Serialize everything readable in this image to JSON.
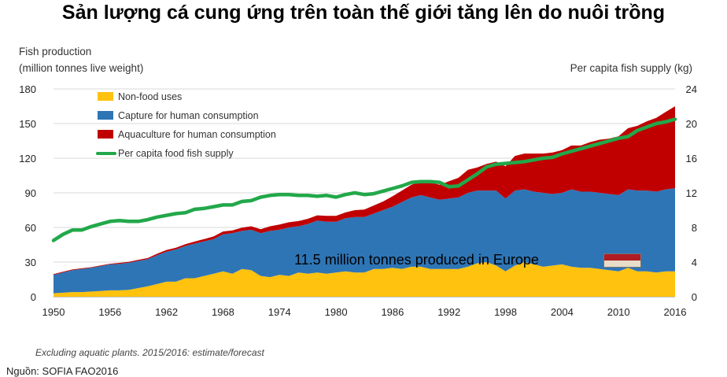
{
  "slide_title": "Sản lượng cá cung ứng trên toàn thế giới tăng lên do nuôi trồng",
  "note": "Excluding aquatic plants. 2015/2016: estimate/forecast",
  "source": "Nguồn: SOFIA FAO2016",
  "annotation": {
    "text": "11.5 million tonnes produced in Europe",
    "flag_colors": [
      "#b01c23",
      "#e7ddc8"
    ]
  },
  "chart_data": {
    "type": "area",
    "ylabel_left_line1": "Fish production",
    "ylabel_left_line2": "(million tonnes live weight)",
    "ylabel_right": "Per capita fish supply (kg)",
    "x_ticks": [
      1950,
      1956,
      1962,
      1968,
      1974,
      1980,
      1986,
      1992,
      1998,
      2004,
      2010,
      2016
    ],
    "y_left_ticks": [
      0,
      30,
      60,
      90,
      120,
      150,
      180
    ],
    "y_right_ticks": [
      0,
      4,
      8,
      12,
      16,
      20,
      24
    ],
    "ylim_left": [
      0,
      180
    ],
    "ylim_right": [
      0,
      24
    ],
    "xlim": [
      1950,
      2016
    ],
    "grid": true,
    "legend_placement": "top-left",
    "colors": {
      "non_food": "#ffc20e",
      "capture": "#2e75b6",
      "aquaculture": "#c00000",
      "per_capita": "#22a84a"
    },
    "x": [
      1950,
      1951,
      1952,
      1953,
      1954,
      1955,
      1956,
      1957,
      1958,
      1959,
      1960,
      1961,
      1962,
      1963,
      1964,
      1965,
      1966,
      1967,
      1968,
      1969,
      1970,
      1971,
      1972,
      1973,
      1974,
      1975,
      1976,
      1977,
      1978,
      1979,
      1980,
      1981,
      1982,
      1983,
      1984,
      1985,
      1986,
      1987,
      1988,
      1989,
      1990,
      1991,
      1992,
      1993,
      1994,
      1995,
      1996,
      1997,
      1998,
      1999,
      2000,
      2001,
      2002,
      2003,
      2004,
      2005,
      2006,
      2007,
      2008,
      2009,
      2010,
      2011,
      2012,
      2013,
      2014,
      2015,
      2016
    ],
    "series": [
      {
        "name": "Non-food uses",
        "kind": "stacked-area",
        "axis": "left",
        "values": [
          3,
          3.5,
          4,
          4,
          4.5,
          5,
          5.5,
          5.5,
          6,
          7.5,
          9,
          11,
          13,
          13,
          16,
          16,
          18,
          20,
          22,
          20,
          24,
          23,
          18,
          17,
          19,
          18,
          21,
          20,
          21,
          20,
          21,
          22,
          21,
          21,
          24,
          24,
          25,
          24,
          26,
          26,
          24,
          24,
          24,
          24,
          26,
          29,
          30,
          27,
          22,
          27,
          30,
          28,
          26,
          27,
          28,
          26,
          25,
          25,
          24,
          23,
          22,
          25,
          22,
          22,
          21,
          22,
          22
        ]
      },
      {
        "name": "Capture for human consumption",
        "kind": "stacked-area",
        "axis": "left",
        "values": [
          16,
          17.5,
          19,
          20,
          20.5,
          21.5,
          22.5,
          23,
          23.5,
          23.5,
          23.5,
          25,
          26,
          28,
          28,
          30,
          30,
          30,
          32,
          35,
          33,
          35,
          37,
          40,
          39,
          42,
          40,
          43,
          45,
          45,
          44,
          46,
          48,
          48,
          48,
          51,
          53,
          58,
          60,
          62,
          62,
          60,
          61,
          62,
          64,
          63,
          62,
          65,
          63,
          65,
          63,
          63,
          64,
          62,
          62,
          67,
          66,
          66,
          66,
          66,
          66,
          68,
          70,
          70,
          70,
          71,
          72
        ]
      },
      {
        "name": "Aquaculture for human consumption",
        "kind": "stacked-area",
        "axis": "left",
        "values": [
          0.6,
          0.6,
          0.6,
          0.6,
          0.6,
          0.6,
          0.6,
          0.8,
          0.8,
          1,
          1,
          1.2,
          1.5,
          1.5,
          1.5,
          1.8,
          2,
          2.2,
          2.5,
          2.5,
          2.8,
          3,
          3.5,
          4,
          4.5,
          4.5,
          4.5,
          4.5,
          4.5,
          5,
          5,
          5,
          6,
          6.5,
          7,
          7.5,
          9,
          10,
          11,
          12,
          13,
          13,
          15,
          17,
          20,
          20,
          23,
          25,
          28,
          30,
          31,
          33,
          34,
          36,
          37,
          38,
          40,
          43,
          46,
          48,
          51,
          53,
          56,
          60,
          64,
          67,
          71
        ]
      },
      {
        "name": "Per capita food fish supply",
        "kind": "line",
        "axis": "right",
        "values": [
          6.5,
          7.2,
          7.7,
          7.7,
          8.1,
          8.4,
          8.7,
          8.8,
          8.7,
          8.7,
          8.9,
          9.2,
          9.4,
          9.6,
          9.7,
          10.1,
          10.2,
          10.4,
          10.6,
          10.6,
          11,
          11.1,
          11.5,
          11.7,
          11.8,
          11.8,
          11.7,
          11.7,
          11.6,
          11.7,
          11.5,
          11.8,
          12,
          11.8,
          11.9,
          12.2,
          12.5,
          12.8,
          13.2,
          13.3,
          13.3,
          13.2,
          12.7,
          12.8,
          13.5,
          14.2,
          15,
          15.3,
          15.4,
          15.5,
          15.6,
          15.8,
          16,
          16.1,
          16.5,
          16.8,
          17.1,
          17.4,
          17.7,
          18,
          18.3,
          18.5,
          19.2,
          19.6,
          20,
          20.2,
          20.5
        ]
      }
    ]
  }
}
